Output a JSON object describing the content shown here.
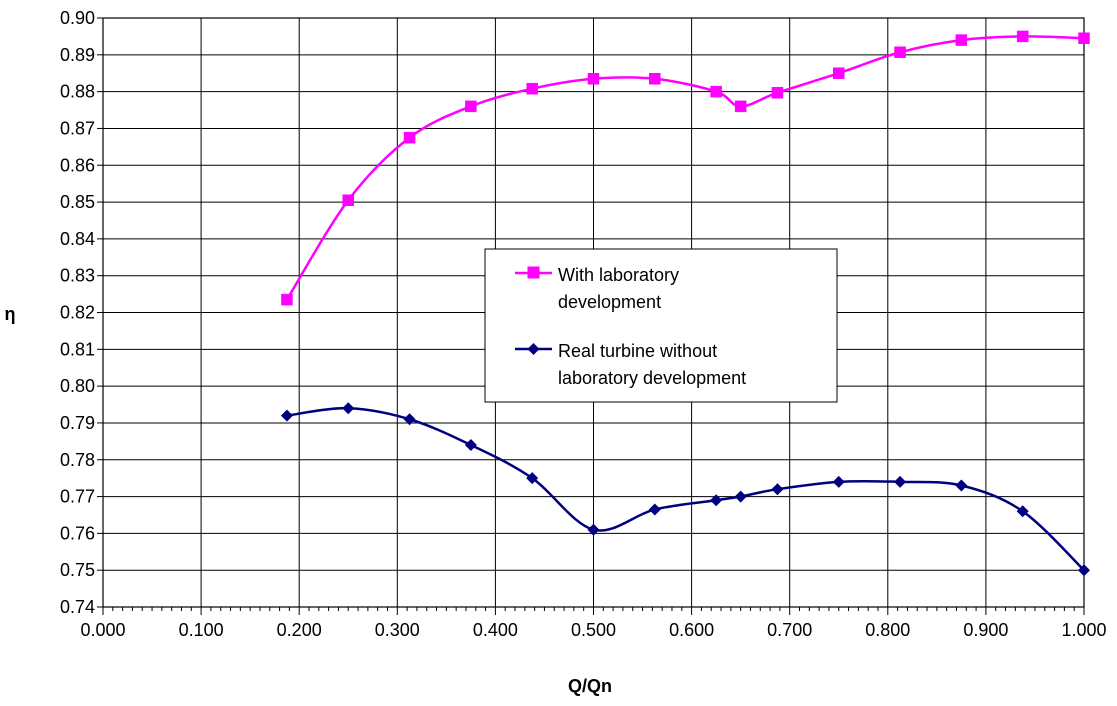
{
  "chart_data": {
    "type": "line",
    "title": "",
    "xlabel": "Q/Qn",
    "ylabel": "η",
    "xlim": [
      0.0,
      1.0
    ],
    "ylim": [
      0.74,
      0.9
    ],
    "x_ticks": [
      "0.000",
      "0.100",
      "0.200",
      "0.300",
      "0.400",
      "0.500",
      "0.600",
      "0.700",
      "0.800",
      "0.900",
      "1.000"
    ],
    "y_ticks": [
      "0.74",
      "0.75",
      "0.76",
      "0.77",
      "0.78",
      "0.79",
      "0.80",
      "0.81",
      "0.82",
      "0.83",
      "0.84",
      "0.85",
      "0.86",
      "0.87",
      "0.88",
      "0.89",
      "0.90"
    ],
    "grid": true,
    "legend_position": "center",
    "series": [
      {
        "name": "With laboratory development",
        "legend_lines": [
          "With laboratory",
          "development"
        ],
        "color": "#ff00ff",
        "marker": "square",
        "x": [
          0.1875,
          0.25,
          0.3125,
          0.375,
          0.4375,
          0.5,
          0.5625,
          0.625,
          0.65,
          0.6875,
          0.75,
          0.8125,
          0.875,
          0.9375,
          1.0
        ],
        "y": [
          0.8235,
          0.8505,
          0.8675,
          0.876,
          0.8808,
          0.8835,
          0.8835,
          0.88,
          0.876,
          0.8797,
          0.885,
          0.8907,
          0.894,
          0.895,
          0.8945
        ]
      },
      {
        "name": "Real turbine without laboratory development",
        "legend_lines": [
          "Real turbine without",
          "laboratory development"
        ],
        "color": "#000080",
        "marker": "diamond",
        "x": [
          0.1875,
          0.25,
          0.3125,
          0.375,
          0.4375,
          0.5,
          0.5625,
          0.625,
          0.65,
          0.6875,
          0.75,
          0.8125,
          0.875,
          0.9375,
          1.0
        ],
        "y": [
          0.792,
          0.794,
          0.791,
          0.784,
          0.775,
          0.761,
          0.7665,
          0.769,
          0.77,
          0.772,
          0.774,
          0.774,
          0.773,
          0.766,
          0.75
        ]
      }
    ]
  }
}
